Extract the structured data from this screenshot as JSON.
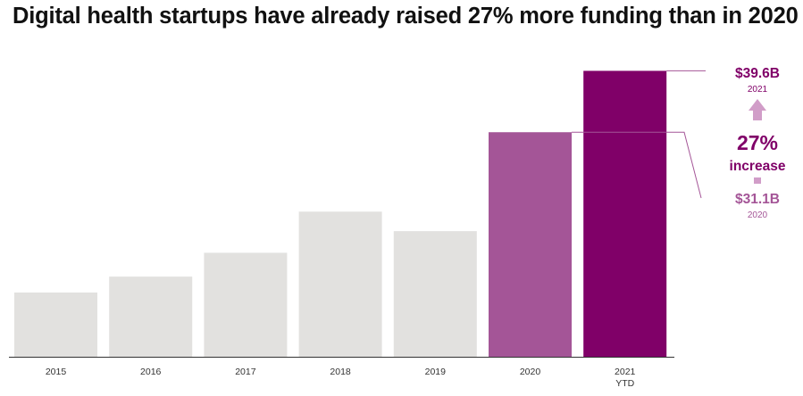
{
  "title": "Digital health startups have already raised 27% more funding than in 2020",
  "colors": {
    "base_bar": "#e2e1df",
    "highlight_2020": "#a45597",
    "highlight_2021": "#800068",
    "axis": "#333333",
    "callout_light": "#a45597",
    "callout_dark": "#800068"
  },
  "chart_data": {
    "type": "bar",
    "categories": [
      "2015",
      "2016",
      "2017",
      "2018",
      "2019",
      "2020",
      "2021"
    ],
    "category_sublabels": [
      "",
      "",
      "",
      "",
      "",
      "",
      "YTD"
    ],
    "values": [
      8.9,
      11.1,
      14.4,
      20.1,
      17.4,
      31.1,
      39.6
    ],
    "ylim": [
      0,
      42
    ],
    "xlabel": "",
    "ylabel": "",
    "grid": false,
    "highlight_categories": [
      "2020",
      "2021"
    ],
    "annotations": {
      "top_value": "$39.6B",
      "top_year": "2021",
      "change_value": "27%",
      "change_label": "increase",
      "bottom_value": "$31.1B",
      "bottom_year": "2020"
    }
  }
}
